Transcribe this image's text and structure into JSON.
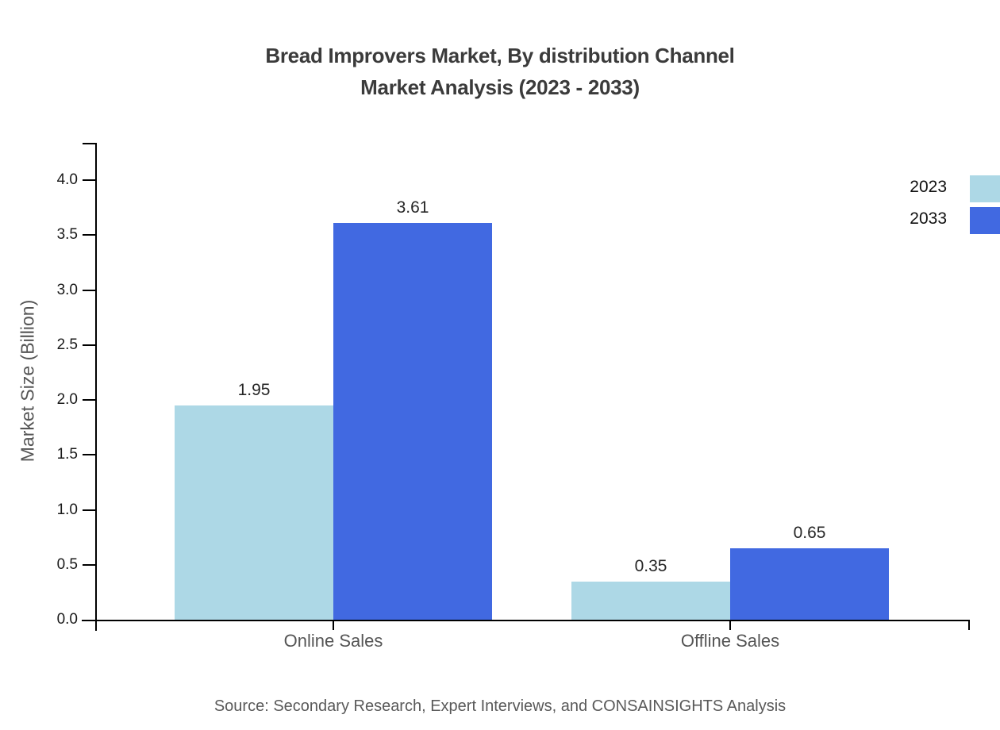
{
  "title": {
    "line1": "Bread Improvers Market, By distribution Channel",
    "line2": "Market Analysis (2023 - 2033)"
  },
  "source": "Source: Secondary Research, Expert Interviews, and CONSAINSIGHTS Analysis",
  "legend": {
    "position": "top-right",
    "items": [
      {
        "label": "2023",
        "color": "#ADD8E6"
      },
      {
        "label": "2033",
        "color": "#4169E1"
      }
    ]
  },
  "chart_data": {
    "type": "bar",
    "categories": [
      "Online Sales",
      "Offline Sales"
    ],
    "series": [
      {
        "name": "2023",
        "values": [
          1.95,
          0.35
        ],
        "color": "#ADD8E6"
      },
      {
        "name": "2033",
        "values": [
          3.61,
          0.65
        ],
        "color": "#4169E1"
      }
    ],
    "value_labels": [
      [
        "1.95",
        "0.35"
      ],
      [
        "3.61",
        "0.65"
      ]
    ],
    "title": "Bread Improvers Market, By distribution Channel Market Analysis (2023 - 2033)",
    "xlabel": "",
    "ylabel": "Market Size (Billion)",
    "ylim": [
      0.0,
      4.0
    ],
    "ytick_step": 0.5,
    "ytick_labels": [
      "0.0",
      "0.5",
      "1.0",
      "1.5",
      "2.0",
      "2.5",
      "3.0",
      "3.5",
      "4.0"
    ],
    "grid": false,
    "legend_position": "top-right",
    "colors": {
      "axis": "#000000",
      "title_text": "#3b3b3b",
      "tick_text": "#1a1a1a",
      "value_label_text": "#262626",
      "category_text": "#555555",
      "source_text": "#595959"
    }
  }
}
